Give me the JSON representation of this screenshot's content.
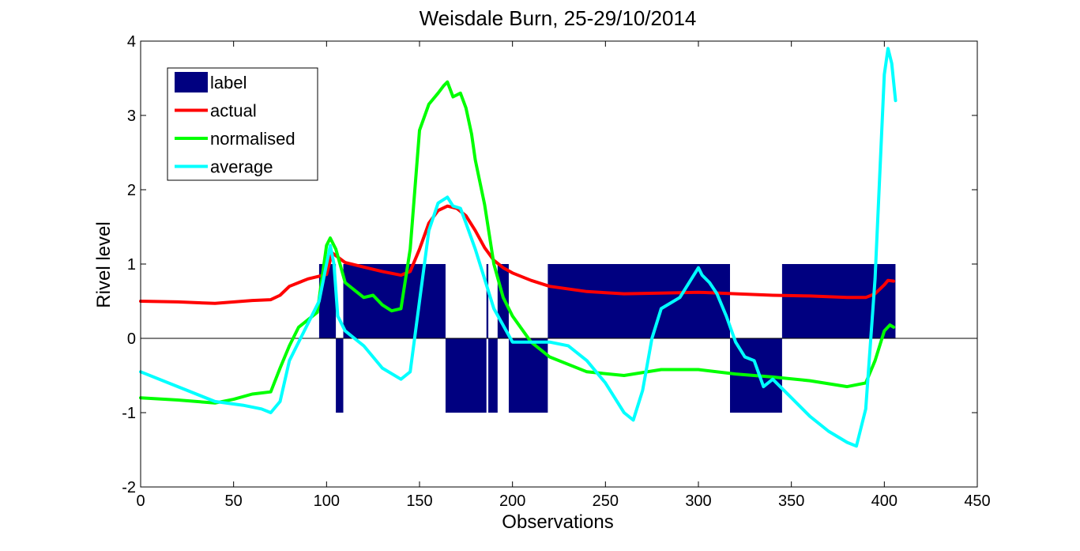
{
  "colors": {
    "label": "#000080",
    "actual": "#ff0000",
    "normalised": "#00ff00",
    "average": "#00ffff",
    "axes": "#000000"
  },
  "chart_data": {
    "type": "line",
    "title": "Weisdale Burn, 25-29/10/2014",
    "xlabel": "Observations",
    "ylabel": "Rivel level",
    "xlim": [
      0,
      450
    ],
    "ylim": [
      -2,
      4
    ],
    "xticks": [
      0,
      50,
      100,
      150,
      200,
      250,
      300,
      350,
      400,
      450
    ],
    "yticks": [
      -2,
      -1,
      0,
      1,
      2,
      3,
      4
    ],
    "legend_position": "top-left",
    "legend": [
      "label",
      "actual",
      "normalised",
      "average"
    ],
    "label_series": {
      "name": "label",
      "style": "bar",
      "segments": [
        {
          "x0": 96,
          "x1": 105,
          "value": 1
        },
        {
          "x0": 105,
          "x1": 109,
          "value": -1
        },
        {
          "x0": 109,
          "x1": 164,
          "value": 1
        },
        {
          "x0": 164,
          "x1": 186,
          "value": -1
        },
        {
          "x0": 186,
          "x1": 187,
          "value": 1
        },
        {
          "x0": 187,
          "x1": 192,
          "value": -1
        },
        {
          "x0": 192,
          "x1": 198,
          "value": 1
        },
        {
          "x0": 198,
          "x1": 219,
          "value": -1
        },
        {
          "x0": 219,
          "x1": 317,
          "value": 1
        },
        {
          "x0": 317,
          "x1": 345,
          "value": -1
        },
        {
          "x0": 345,
          "x1": 406,
          "value": 1
        }
      ]
    },
    "series": [
      {
        "name": "actual",
        "x": [
          0,
          20,
          40,
          60,
          70,
          75,
          80,
          90,
          100,
          103,
          110,
          120,
          130,
          140,
          145,
          150,
          155,
          160,
          165,
          170,
          175,
          180,
          185,
          190,
          195,
          200,
          210,
          220,
          240,
          260,
          280,
          300,
          320,
          340,
          360,
          380,
          390,
          395,
          400,
          402,
          405
        ],
        "y": [
          0.5,
          0.49,
          0.47,
          0.51,
          0.52,
          0.58,
          0.7,
          0.8,
          0.86,
          1.15,
          1.02,
          0.96,
          0.9,
          0.85,
          0.9,
          1.2,
          1.55,
          1.72,
          1.78,
          1.75,
          1.65,
          1.45,
          1.22,
          1.05,
          0.95,
          0.88,
          0.78,
          0.7,
          0.63,
          0.6,
          0.61,
          0.62,
          0.6,
          0.58,
          0.57,
          0.55,
          0.55,
          0.6,
          0.72,
          0.78,
          0.77
        ]
      },
      {
        "name": "normalised",
        "x": [
          0,
          20,
          40,
          50,
          60,
          70,
          75,
          80,
          85,
          90,
          95,
          100,
          102,
          105,
          110,
          115,
          120,
          125,
          130,
          135,
          140,
          145,
          150,
          155,
          160,
          163,
          165,
          168,
          172,
          175,
          178,
          180,
          185,
          190,
          195,
          200,
          210,
          220,
          240,
          260,
          280,
          300,
          320,
          340,
          360,
          380,
          390,
          395,
          400,
          403,
          405
        ],
        "y": [
          -0.8,
          -0.83,
          -0.87,
          -0.82,
          -0.75,
          -0.72,
          -0.4,
          -0.1,
          0.15,
          0.25,
          0.35,
          1.25,
          1.35,
          1.2,
          0.75,
          0.65,
          0.55,
          0.58,
          0.45,
          0.37,
          0.4,
          1.2,
          2.8,
          3.15,
          3.3,
          3.4,
          3.45,
          3.25,
          3.3,
          3.1,
          2.75,
          2.4,
          1.8,
          1.0,
          0.55,
          0.3,
          -0.05,
          -0.25,
          -0.45,
          -0.5,
          -0.42,
          -0.42,
          -0.48,
          -0.52,
          -0.57,
          -0.65,
          -0.6,
          -0.3,
          0.1,
          0.18,
          0.15
        ]
      },
      {
        "name": "average",
        "x": [
          0,
          20,
          40,
          55,
          65,
          70,
          75,
          80,
          90,
          96,
          100,
          102,
          104,
          106,
          110,
          115,
          120,
          130,
          140,
          145,
          150,
          155,
          160,
          165,
          168,
          172,
          175,
          180,
          190,
          200,
          210,
          220,
          230,
          240,
          250,
          260,
          265,
          270,
          275,
          280,
          290,
          300,
          302,
          306,
          310,
          315,
          320,
          325,
          330,
          335,
          340,
          350,
          360,
          370,
          380,
          385,
          390,
          395,
          400,
          402,
          404,
          406
        ],
        "y": [
          -0.45,
          -0.65,
          -0.85,
          -0.9,
          -0.95,
          -1.0,
          -0.85,
          -0.3,
          0.2,
          0.5,
          1.0,
          1.25,
          1.0,
          0.3,
          0.1,
          0.0,
          -0.1,
          -0.4,
          -0.55,
          -0.45,
          0.5,
          1.45,
          1.82,
          1.9,
          1.78,
          1.75,
          1.55,
          1.2,
          0.4,
          -0.05,
          -0.05,
          -0.05,
          -0.1,
          -0.3,
          -0.6,
          -1.0,
          -1.1,
          -0.7,
          0.0,
          0.4,
          0.55,
          0.95,
          0.85,
          0.75,
          0.6,
          0.3,
          -0.05,
          -0.25,
          -0.3,
          -0.65,
          -0.55,
          -0.8,
          -1.05,
          -1.25,
          -1.4,
          -1.45,
          -0.95,
          0.8,
          3.55,
          3.9,
          3.7,
          3.2
        ]
      }
    ]
  }
}
